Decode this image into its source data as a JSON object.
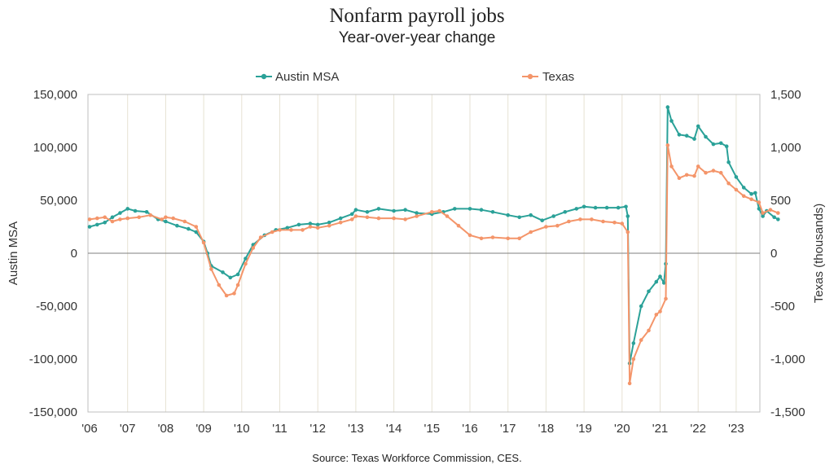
{
  "chart_data": {
    "type": "line",
    "title": "Nonfarm payroll jobs",
    "subtitle": "Year-over-year change",
    "source": "Source: Texas Workforce Commission, CES.",
    "ylabel_left": "Austin MSA",
    "ylabel_right": "Texas (thousands)",
    "ylim_left": [
      -150000,
      150000
    ],
    "ylim_right": [
      -1500,
      1500
    ],
    "yticks_left": [
      "150,000",
      "100,000",
      "50,000",
      "0",
      "-50,000",
      "-100,000",
      "-150,000"
    ],
    "yticks_right": [
      "1,500",
      "1,000",
      "500",
      "0",
      "-500",
      "-1,000",
      "-1,500"
    ],
    "xlim": [
      2006,
      2024
    ],
    "xticks": [
      "'06",
      "'07",
      "'08",
      "'09",
      "'10",
      "'11",
      "'12",
      "'13",
      "'14",
      "'15",
      "'16",
      "'17",
      "'18",
      "'19",
      "'20",
      "'21",
      "'22",
      "'23"
    ],
    "grid": "vertical",
    "legend_position": "top",
    "series": [
      {
        "name": "Austin MSA",
        "axis": "left",
        "color": "#2aa198",
        "points": [
          [
            2006.0,
            25000
          ],
          [
            2006.2,
            27000
          ],
          [
            2006.4,
            29000
          ],
          [
            2006.6,
            34000
          ],
          [
            2006.8,
            38000
          ],
          [
            2007.0,
            42000
          ],
          [
            2007.2,
            40000
          ],
          [
            2007.5,
            39000
          ],
          [
            2007.8,
            32000
          ],
          [
            2008.0,
            30000
          ],
          [
            2008.3,
            26000
          ],
          [
            2008.6,
            23000
          ],
          [
            2008.8,
            20000
          ],
          [
            2009.0,
            11000
          ],
          [
            2009.1,
            0
          ],
          [
            2009.2,
            -12000
          ],
          [
            2009.5,
            -18000
          ],
          [
            2009.7,
            -23000
          ],
          [
            2009.9,
            -20000
          ],
          [
            2010.1,
            -5000
          ],
          [
            2010.3,
            8000
          ],
          [
            2010.6,
            17000
          ],
          [
            2010.9,
            22000
          ],
          [
            2011.2,
            24000
          ],
          [
            2011.5,
            27000
          ],
          [
            2011.8,
            28000
          ],
          [
            2012.0,
            27000
          ],
          [
            2012.3,
            29000
          ],
          [
            2012.6,
            33000
          ],
          [
            2012.9,
            37000
          ],
          [
            2013.0,
            41000
          ],
          [
            2013.3,
            39000
          ],
          [
            2013.6,
            42000
          ],
          [
            2014.0,
            40000
          ],
          [
            2014.3,
            41000
          ],
          [
            2014.6,
            38000
          ],
          [
            2015.0,
            37000
          ],
          [
            2015.3,
            39000
          ],
          [
            2015.6,
            42000
          ],
          [
            2016.0,
            42000
          ],
          [
            2016.3,
            41000
          ],
          [
            2016.6,
            39000
          ],
          [
            2017.0,
            36000
          ],
          [
            2017.3,
            34000
          ],
          [
            2017.6,
            36000
          ],
          [
            2017.9,
            31000
          ],
          [
            2018.2,
            35000
          ],
          [
            2018.5,
            39000
          ],
          [
            2018.8,
            42000
          ],
          [
            2019.0,
            44000
          ],
          [
            2019.3,
            43000
          ],
          [
            2019.6,
            43000
          ],
          [
            2019.9,
            43000
          ],
          [
            2020.1,
            44000
          ],
          [
            2020.15,
            35000
          ],
          [
            2020.2,
            -104000
          ],
          [
            2020.3,
            -85000
          ],
          [
            2020.5,
            -50000
          ],
          [
            2020.7,
            -36000
          ],
          [
            2020.9,
            -27000
          ],
          [
            2021.0,
            -22000
          ],
          [
            2021.1,
            -28000
          ],
          [
            2021.15,
            -10000
          ],
          [
            2021.2,
            138000
          ],
          [
            2021.3,
            125000
          ],
          [
            2021.5,
            112000
          ],
          [
            2021.7,
            111000
          ],
          [
            2021.9,
            108000
          ],
          [
            2022.0,
            120000
          ],
          [
            2022.2,
            110000
          ],
          [
            2022.4,
            103000
          ],
          [
            2022.6,
            104000
          ],
          [
            2022.75,
            101000
          ],
          [
            2022.8,
            86000
          ],
          [
            2023.0,
            72000
          ],
          [
            2023.2,
            62000
          ],
          [
            2023.4,
            56000
          ],
          [
            2023.5,
            57000
          ],
          [
            2023.6,
            42000
          ],
          [
            2023.7,
            35000
          ],
          [
            2023.8,
            40000
          ],
          [
            2024.0,
            34000
          ],
          [
            2024.1,
            32000
          ]
        ]
      },
      {
        "name": "Texas",
        "axis": "right",
        "color": "#f4956a",
        "points": [
          [
            2006.0,
            320
          ],
          [
            2006.2,
            330
          ],
          [
            2006.4,
            340
          ],
          [
            2006.6,
            300
          ],
          [
            2006.8,
            320
          ],
          [
            2007.0,
            330
          ],
          [
            2007.3,
            340
          ],
          [
            2007.6,
            360
          ],
          [
            2007.9,
            320
          ],
          [
            2008.0,
            340
          ],
          [
            2008.2,
            330
          ],
          [
            2008.5,
            300
          ],
          [
            2008.8,
            250
          ],
          [
            2009.0,
            100
          ],
          [
            2009.2,
            -150
          ],
          [
            2009.4,
            -300
          ],
          [
            2009.6,
            -400
          ],
          [
            2009.8,
            -380
          ],
          [
            2009.9,
            -300
          ],
          [
            2010.1,
            -100
          ],
          [
            2010.3,
            50
          ],
          [
            2010.5,
            150
          ],
          [
            2010.8,
            200
          ],
          [
            2011.0,
            220
          ],
          [
            2011.3,
            220
          ],
          [
            2011.6,
            220
          ],
          [
            2011.8,
            250
          ],
          [
            2012.0,
            240
          ],
          [
            2012.3,
            260
          ],
          [
            2012.6,
            290
          ],
          [
            2012.9,
            320
          ],
          [
            2013.0,
            350
          ],
          [
            2013.3,
            340
          ],
          [
            2013.6,
            330
          ],
          [
            2014.0,
            330
          ],
          [
            2014.3,
            320
          ],
          [
            2014.6,
            350
          ],
          [
            2015.0,
            390
          ],
          [
            2015.2,
            400
          ],
          [
            2015.4,
            350
          ],
          [
            2015.7,
            260
          ],
          [
            2016.0,
            170
          ],
          [
            2016.3,
            140
          ],
          [
            2016.6,
            150
          ],
          [
            2017.0,
            140
          ],
          [
            2017.3,
            140
          ],
          [
            2017.6,
            200
          ],
          [
            2018.0,
            250
          ],
          [
            2018.3,
            260
          ],
          [
            2018.6,
            300
          ],
          [
            2018.9,
            320
          ],
          [
            2019.2,
            320
          ],
          [
            2019.5,
            300
          ],
          [
            2019.8,
            290
          ],
          [
            2020.0,
            280
          ],
          [
            2020.15,
            200
          ],
          [
            2020.2,
            -1230
          ],
          [
            2020.3,
            -1000
          ],
          [
            2020.5,
            -820
          ],
          [
            2020.7,
            -730
          ],
          [
            2020.9,
            -580
          ],
          [
            2021.0,
            -550
          ],
          [
            2021.15,
            -430
          ],
          [
            2021.2,
            1020
          ],
          [
            2021.3,
            820
          ],
          [
            2021.5,
            710
          ],
          [
            2021.7,
            740
          ],
          [
            2021.9,
            730
          ],
          [
            2022.0,
            820
          ],
          [
            2022.2,
            760
          ],
          [
            2022.4,
            780
          ],
          [
            2022.6,
            760
          ],
          [
            2022.8,
            660
          ],
          [
            2023.0,
            600
          ],
          [
            2023.2,
            540
          ],
          [
            2023.4,
            510
          ],
          [
            2023.6,
            480
          ],
          [
            2023.7,
            380
          ],
          [
            2023.9,
            410
          ],
          [
            2024.1,
            380
          ]
        ]
      }
    ]
  }
}
